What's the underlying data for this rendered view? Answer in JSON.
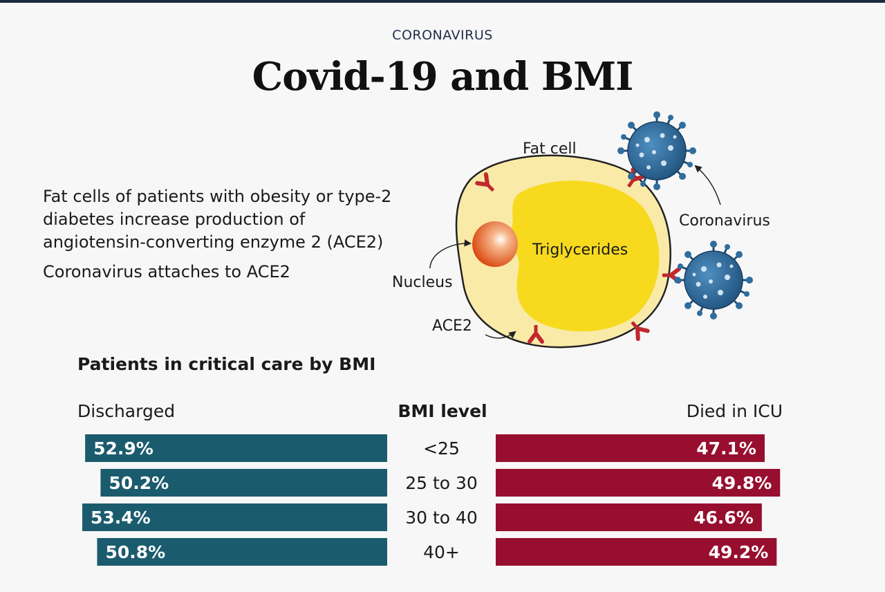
{
  "header": {
    "kicker": "CORONAVIRUS",
    "title": "Covid-19 and BMI"
  },
  "intro": {
    "line1": "Fat cells of patients with obesity or type-2 diabetes increase production of angiotensin-converting enzyme 2 (ACE2)",
    "line2": "Coronavirus attaches to ACE2"
  },
  "illustration": {
    "labels": {
      "fat_cell": "Fat cell",
      "triglycerides": "Triglycerides",
      "nucleus": "Nucleus",
      "coronavirus": "Coronavirus",
      "ace2": "ACE2"
    },
    "colors": {
      "cell_outer": "#faeaa8",
      "cell_inner": "#f7da1e",
      "nucleus": "#e8561a",
      "receptor": "#c0282e",
      "virus": "#2f6d9e"
    }
  },
  "chart_data": {
    "type": "bar",
    "title": "Patients in critical care by BMI",
    "category_label": "BMI level",
    "categories": [
      "<25",
      "25 to 30",
      "30 to 40",
      "40+"
    ],
    "series": [
      {
        "name": "Discharged",
        "values": [
          52.9,
          50.2,
          53.4,
          50.8
        ],
        "labels": [
          "52.9%",
          "50.2%",
          "53.4%",
          "50.8%"
        ],
        "color": "#1b5b6e",
        "side": "left"
      },
      {
        "name": "Died in ICU",
        "values": [
          47.1,
          49.8,
          46.6,
          49.2
        ],
        "labels": [
          "47.1%",
          "49.8%",
          "46.6%",
          "49.2%"
        ],
        "color": "#970e2e",
        "side": "right"
      }
    ],
    "xlim": [
      0,
      60
    ]
  }
}
